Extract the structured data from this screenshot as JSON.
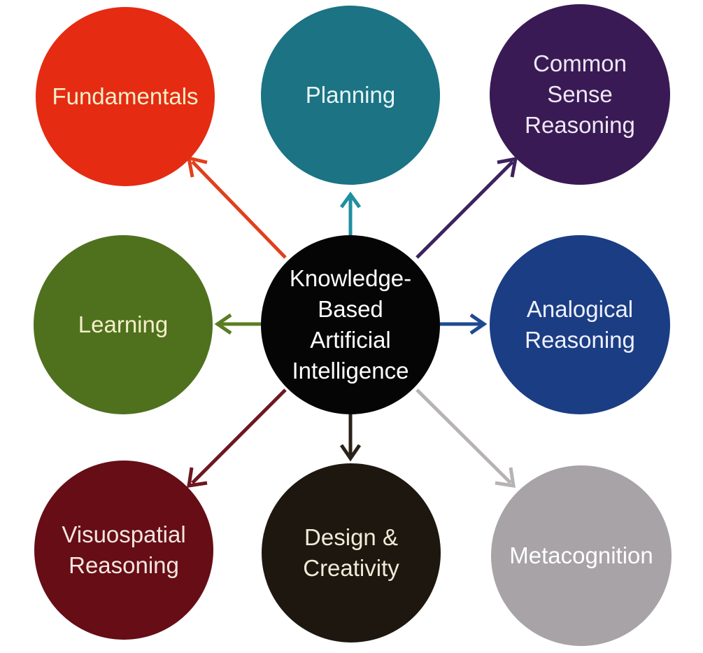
{
  "center": {
    "label": "Knowledge-\nBased\nArtificial\nIntelligence",
    "color": "#060505"
  },
  "nodes": {
    "fundamentals": {
      "label": "Fundamentals",
      "color": "#e52b12"
    },
    "planning": {
      "label": "Planning",
      "color": "#1b7384"
    },
    "common_sense": {
      "label": "Common\nSense\nReasoning",
      "color": "#3a1a55"
    },
    "learning": {
      "label": "Learning",
      "color": "#4f711e"
    },
    "analogical": {
      "label": "Analogical\nReasoning",
      "color": "#1b3d84"
    },
    "visuospatial": {
      "label": "Visuospatial\nReasoning",
      "color": "#660d16"
    },
    "design": {
      "label": "Design &\nCreativity",
      "color": "#1d170f"
    },
    "metacognition": {
      "label": "Metacognition",
      "color": "#a7a3a6"
    }
  }
}
